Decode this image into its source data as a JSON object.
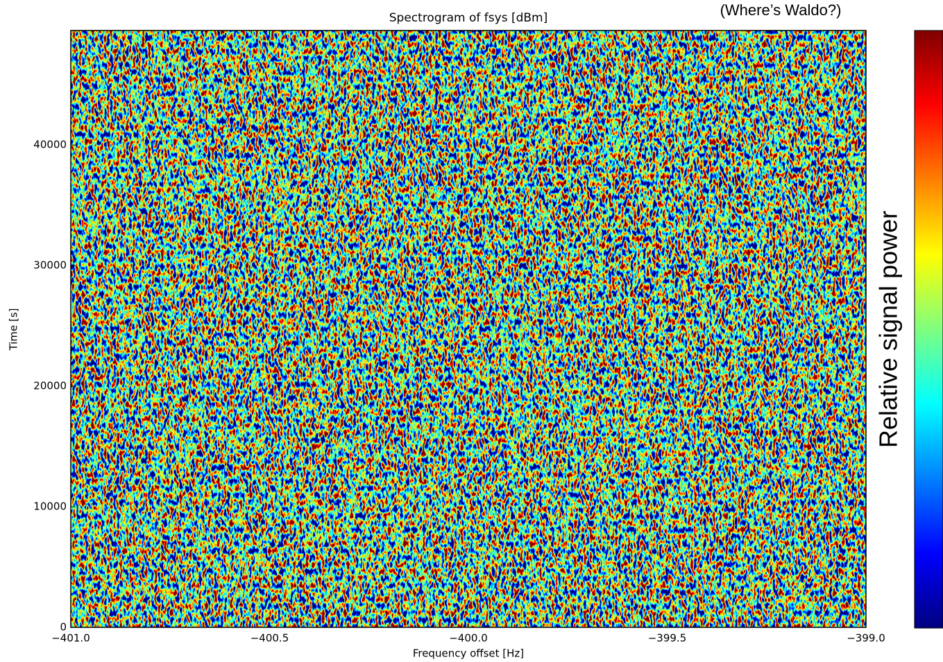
{
  "chart_data": {
    "type": "spectrogram",
    "title": "Spectrogram of fsys [dBm]",
    "annotation": "(Where’s Waldo?)",
    "xlabel": "Frequency offset [Hz]",
    "ylabel": "Time [s]",
    "colorbar_label": "Relative signal power",
    "colormap": [
      "#00007f",
      "#0000ff",
      "#007fff",
      "#00ffff",
      "#7fff7f",
      "#ffff00",
      "#ff7f00",
      "#ff0000",
      "#7f0000"
    ],
    "xlim": [
      -401,
      -399
    ],
    "xticks": [
      {
        "value": -401,
        "label": "−401.0"
      },
      {
        "value": -400.5,
        "label": "−400.5"
      },
      {
        "value": -400,
        "label": "−400.0"
      },
      {
        "value": -399.5,
        "label": "−399.5"
      },
      {
        "value": -399,
        "label": "−399.0"
      }
    ],
    "ylim": [
      0,
      49500
    ],
    "yticks": [
      0,
      10000,
      20000,
      30000,
      40000
    ]
  }
}
